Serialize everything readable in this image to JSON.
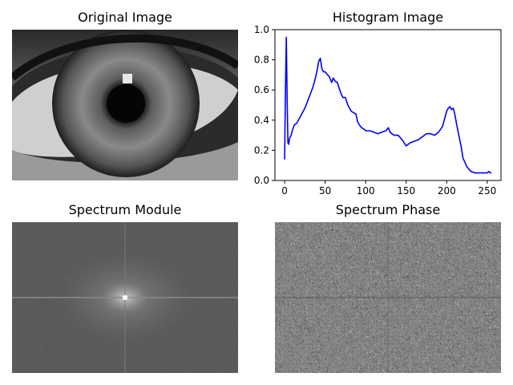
{
  "panels": {
    "original": {
      "title": "Original Image"
    },
    "histogram": {
      "title": "Histogram Image"
    },
    "module": {
      "title": "Spectrum Module"
    },
    "phase": {
      "title": "Spectrum Phase"
    }
  },
  "colors": {
    "line": "#0000ff",
    "axis": "#000000"
  },
  "chart_data": {
    "type": "line",
    "title": "Histogram Image",
    "xlabel": "",
    "ylabel": "",
    "xlim": [
      -12,
      267
    ],
    "ylim": [
      0.0,
      1.0
    ],
    "xticks": [
      0,
      50,
      100,
      150,
      200,
      250
    ],
    "yticks": [
      0.0,
      0.2,
      0.4,
      0.6,
      0.8,
      1.0
    ],
    "xtick_labels": [
      "0",
      "50",
      "100",
      "150",
      "200",
      "250"
    ],
    "ytick_labels": [
      "0.0",
      "0.2",
      "0.4",
      "0.6",
      "0.8",
      "1.0"
    ],
    "grid": false,
    "series": [
      {
        "color": "#0000ff",
        "x": [
          0,
          1,
          2,
          3,
          4,
          5,
          6,
          8,
          10,
          12,
          15,
          18,
          20,
          25,
          30,
          35,
          38,
          40,
          42,
          44,
          46,
          48,
          50,
          53,
          55,
          58,
          60,
          62,
          65,
          68,
          70,
          72,
          75,
          78,
          80,
          82,
          85,
          88,
          90,
          92,
          95,
          98,
          100,
          105,
          110,
          115,
          120,
          125,
          128,
          130,
          135,
          140,
          145,
          150,
          155,
          160,
          165,
          170,
          175,
          180,
          185,
          190,
          195,
          198,
          200,
          202,
          204,
          206,
          208,
          210,
          212,
          215,
          218,
          220,
          225,
          230,
          235,
          240,
          245,
          250,
          252,
          254,
          255
        ],
        "y": [
          0.14,
          0.6,
          0.95,
          0.55,
          0.25,
          0.24,
          0.28,
          0.3,
          0.34,
          0.37,
          0.38,
          0.41,
          0.43,
          0.48,
          0.55,
          0.62,
          0.68,
          0.73,
          0.79,
          0.81,
          0.74,
          0.72,
          0.72,
          0.7,
          0.69,
          0.65,
          0.68,
          0.66,
          0.65,
          0.6,
          0.57,
          0.55,
          0.55,
          0.5,
          0.48,
          0.46,
          0.45,
          0.44,
          0.39,
          0.37,
          0.35,
          0.34,
          0.33,
          0.33,
          0.32,
          0.31,
          0.32,
          0.33,
          0.35,
          0.32,
          0.3,
          0.3,
          0.27,
          0.23,
          0.25,
          0.26,
          0.27,
          0.29,
          0.31,
          0.31,
          0.3,
          0.32,
          0.36,
          0.42,
          0.46,
          0.48,
          0.49,
          0.47,
          0.48,
          0.44,
          0.38,
          0.3,
          0.22,
          0.15,
          0.09,
          0.06,
          0.05,
          0.05,
          0.05,
          0.05,
          0.06,
          0.05,
          0.05
        ]
      }
    ]
  }
}
